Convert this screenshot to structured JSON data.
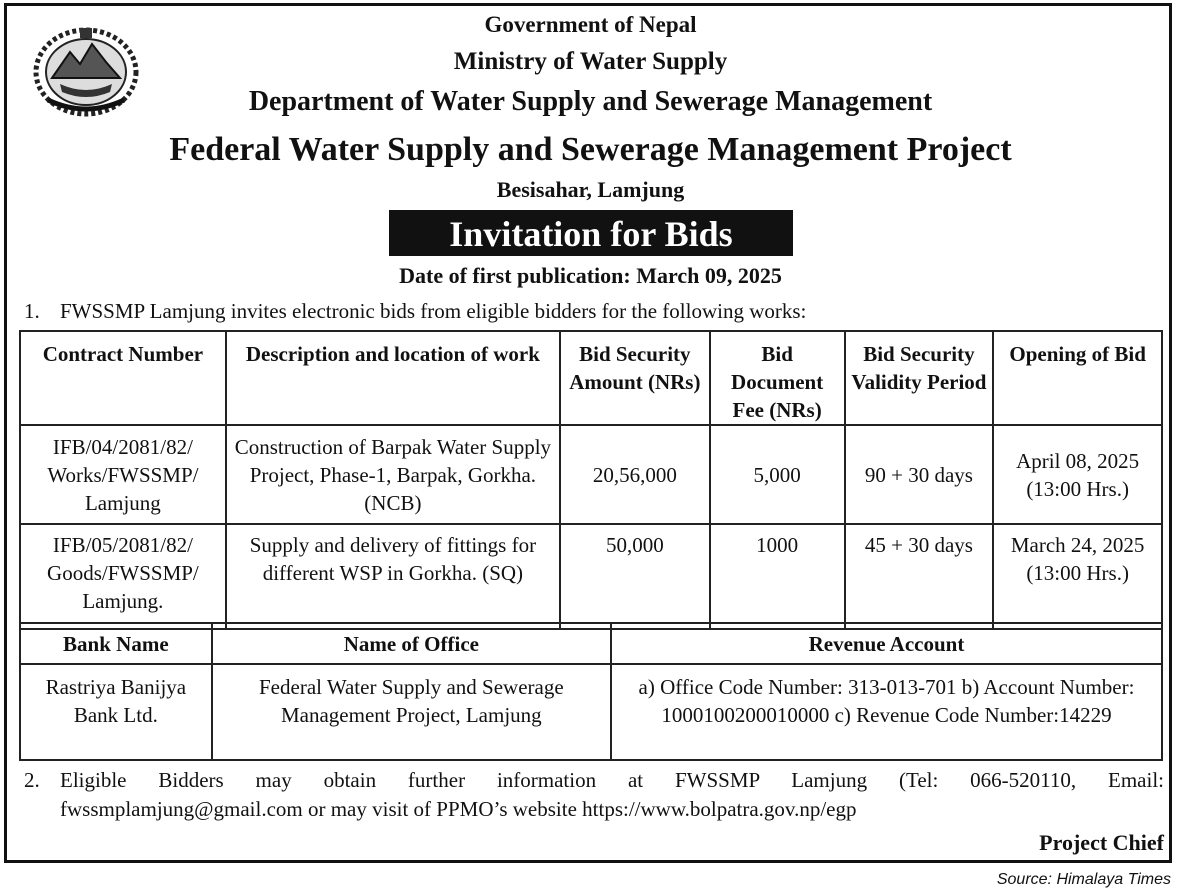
{
  "header": {
    "line1": "Government of Nepal",
    "line2": "Ministry of Water Supply",
    "line3": "Department of Water Supply and Sewerage Management",
    "line4": "Federal Water Supply and Sewerage Management Project",
    "line5": "Besisahar, Lamjung",
    "emblem_icon": "nepal-government-emblem-icon"
  },
  "notice": {
    "title": "Invitation for Bids",
    "publication_date": "Date of first publication: March 09, 2025"
  },
  "para1": {
    "number": "1.",
    "text": "FWSSMP Lamjung invites electronic bids from eligible bidders for the following works:"
  },
  "works_table": {
    "headers": [
      "Contract Number",
      "Description and location of work",
      "Bid Security Amount (NRs)",
      "Bid Document Fee (NRs)",
      "Bid Security Validity Period",
      "Opening of Bid"
    ],
    "rows": [
      {
        "contract": "IFB/04/2081/82/ Works/FWSSMP/ Lamjung",
        "description": "Construction of Barpak Water Supply Project, Phase-1, Barpak, Gorkha. (NCB)",
        "security": "20,56,000",
        "fee": "5,000",
        "validity": "90 + 30 days",
        "opening_date": "April 08, 2025",
        "opening_time": "(13:00 Hrs.)"
      },
      {
        "contract": "IFB/05/2081/82/ Goods/FWSSMP/ Lamjung.",
        "description": "Supply and delivery of fittings for different WSP in Gorkha. (SQ)",
        "security": "50,000",
        "fee": "1000",
        "validity": "45 + 30 days",
        "opening_date": "March 24, 2025",
        "opening_time": "(13:00 Hrs.)"
      }
    ]
  },
  "bank_table": {
    "headers": [
      "Bank Name",
      "Name of Office",
      "Revenue Account"
    ],
    "row": {
      "bank": "Rastriya Banijya Bank Ltd.",
      "office": "Federal Water Supply and Sewerage Management Project, Lamjung",
      "revenue": "a) Office Code Number: 313-013-701 b) Account Number: 1000100200010000 c) Revenue Code Number:14229"
    }
  },
  "para2": {
    "number": "2.",
    "line1": "Eligible Bidders may obtain further information at FWSSMP Lamjung (Tel: 066-520110, Email:",
    "line2": "fwssmplamjung@gmail.com or may visit of PPMO’s website https://www.bolpatra.gov.np/egp"
  },
  "signer": "Project Chief",
  "source": "Source: Himalaya Times"
}
